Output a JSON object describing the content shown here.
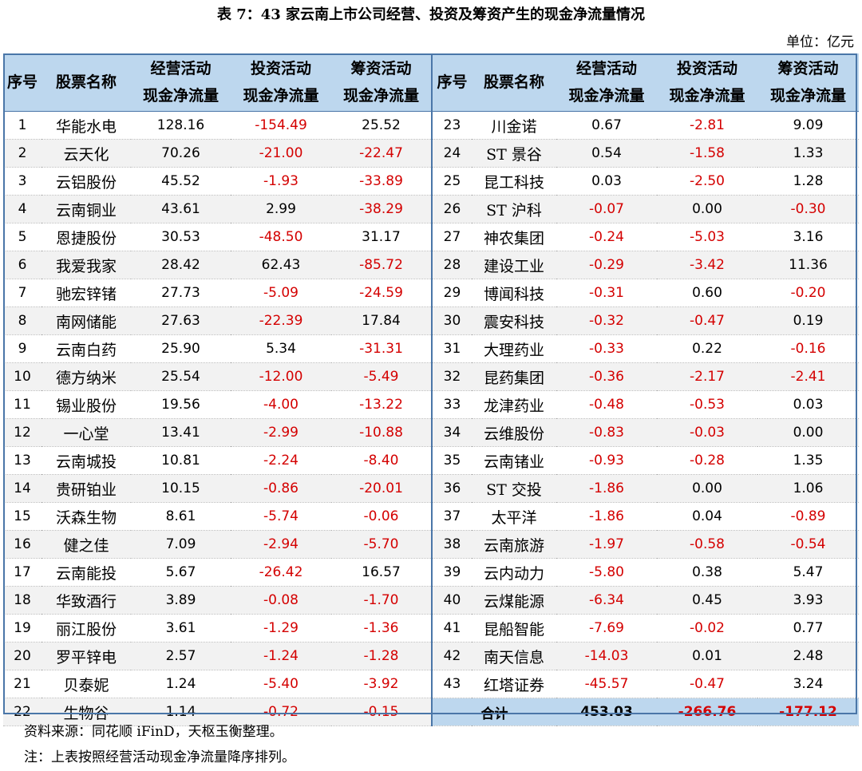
{
  "title": "表 7：43 家云南上市公司经营、投资及筹资产生的现金净流量情况",
  "unit": "单位：亿元",
  "headers": {
    "idx": "序号",
    "name": "股票名称",
    "op": [
      "经营活动",
      "现金净流量"
    ],
    "inv": [
      "投资活动",
      "现金净流量"
    ],
    "fin": [
      "筹资活动",
      "现金净流量"
    ]
  },
  "left_rows": [
    {
      "idx": "1",
      "name": "华能水电",
      "op": "128.16",
      "inv": "-154.49",
      "fin": "25.52"
    },
    {
      "idx": "2",
      "name": "云天化",
      "op": "70.26",
      "inv": "-21.00",
      "fin": "-22.47"
    },
    {
      "idx": "3",
      "name": "云铝股份",
      "op": "45.52",
      "inv": "-1.93",
      "fin": "-33.89"
    },
    {
      "idx": "4",
      "name": "云南铜业",
      "op": "43.61",
      "inv": "2.99",
      "fin": "-38.29"
    },
    {
      "idx": "5",
      "name": "恩捷股份",
      "op": "30.53",
      "inv": "-48.50",
      "fin": "31.17"
    },
    {
      "idx": "6",
      "name": "我爱我家",
      "op": "28.42",
      "inv": "62.43",
      "fin": "-85.72"
    },
    {
      "idx": "7",
      "name": "驰宏锌锗",
      "op": "27.73",
      "inv": "-5.09",
      "fin": "-24.59"
    },
    {
      "idx": "8",
      "name": "南网储能",
      "op": "27.63",
      "inv": "-22.39",
      "fin": "17.84"
    },
    {
      "idx": "9",
      "name": "云南白药",
      "op": "25.90",
      "inv": "5.34",
      "fin": "-31.31"
    },
    {
      "idx": "10",
      "name": "德方纳米",
      "op": "25.54",
      "inv": "-12.00",
      "fin": "-5.49"
    },
    {
      "idx": "11",
      "name": "锡业股份",
      "op": "19.56",
      "inv": "-4.00",
      "fin": "-13.22"
    },
    {
      "idx": "12",
      "name": "一心堂",
      "op": "13.41",
      "inv": "-2.99",
      "fin": "-10.88"
    },
    {
      "idx": "13",
      "name": "云南城投",
      "op": "10.81",
      "inv": "-2.24",
      "fin": "-8.40"
    },
    {
      "idx": "14",
      "name": "贵研铂业",
      "op": "10.15",
      "inv": "-0.86",
      "fin": "-20.01"
    },
    {
      "idx": "15",
      "name": "沃森生物",
      "op": "8.61",
      "inv": "-5.74",
      "fin": "-0.06"
    },
    {
      "idx": "16",
      "name": "健之佳",
      "op": "7.09",
      "inv": "-2.94",
      "fin": "-5.70"
    },
    {
      "idx": "17",
      "name": "云南能投",
      "op": "5.67",
      "inv": "-26.42",
      "fin": "16.57"
    },
    {
      "idx": "18",
      "name": "华致酒行",
      "op": "3.89",
      "inv": "-0.08",
      "fin": "-1.70"
    },
    {
      "idx": "19",
      "name": "丽江股份",
      "op": "3.61",
      "inv": "-1.29",
      "fin": "-1.36"
    },
    {
      "idx": "20",
      "name": "罗平锌电",
      "op": "2.57",
      "inv": "-1.24",
      "fin": "-1.28"
    },
    {
      "idx": "21",
      "name": "贝泰妮",
      "op": "1.24",
      "inv": "-5.40",
      "fin": "-3.92"
    },
    {
      "idx": "22",
      "name": "生物谷",
      "op": "1.14",
      "inv": "-0.72",
      "fin": "-0.15"
    }
  ],
  "right_rows": [
    {
      "idx": "23",
      "name": "川金诺",
      "op": "0.67",
      "inv": "-2.81",
      "fin": "9.09"
    },
    {
      "idx": "24",
      "name": "ST 景谷",
      "op": "0.54",
      "inv": "-1.58",
      "fin": "1.33"
    },
    {
      "idx": "25",
      "name": "昆工科技",
      "op": "0.03",
      "inv": "-2.50",
      "fin": "1.28"
    },
    {
      "idx": "26",
      "name": "ST 沪科",
      "op": "-0.07",
      "inv": "0.00",
      "fin": "-0.30"
    },
    {
      "idx": "27",
      "name": "神农集团",
      "op": "-0.24",
      "inv": "-5.03",
      "fin": "3.16"
    },
    {
      "idx": "28",
      "name": "建设工业",
      "op": "-0.29",
      "inv": "-3.42",
      "fin": "11.36"
    },
    {
      "idx": "29",
      "name": "博闻科技",
      "op": "-0.31",
      "inv": "0.60",
      "fin": "-0.20"
    },
    {
      "idx": "30",
      "name": "震安科技",
      "op": "-0.32",
      "inv": "-0.47",
      "fin": "0.19"
    },
    {
      "idx": "31",
      "name": "大理药业",
      "op": "-0.33",
      "inv": "0.22",
      "fin": "-0.16"
    },
    {
      "idx": "32",
      "name": "昆药集团",
      "op": "-0.36",
      "inv": "-2.17",
      "fin": "-2.41"
    },
    {
      "idx": "33",
      "name": "龙津药业",
      "op": "-0.48",
      "inv": "-0.53",
      "fin": "0.03"
    },
    {
      "idx": "34",
      "name": "云维股份",
      "op": "-0.83",
      "inv": "-0.03",
      "fin": "0.00"
    },
    {
      "idx": "35",
      "name": "云南锗业",
      "op": "-0.93",
      "inv": "-0.28",
      "fin": "1.35"
    },
    {
      "idx": "36",
      "name": "ST 交投",
      "op": "-1.86",
      "inv": "0.00",
      "fin": "1.06"
    },
    {
      "idx": "37",
      "name": "太平洋",
      "op": "-1.86",
      "inv": "0.04",
      "fin": "-0.89"
    },
    {
      "idx": "38",
      "name": "云南旅游",
      "op": "-1.97",
      "inv": "-0.58",
      "fin": "-0.54"
    },
    {
      "idx": "39",
      "name": "云内动力",
      "op": "-5.80",
      "inv": "0.38",
      "fin": "5.47"
    },
    {
      "idx": "40",
      "name": "云煤能源",
      "op": "-6.34",
      "inv": "0.45",
      "fin": "3.93"
    },
    {
      "idx": "41",
      "name": "昆船智能",
      "op": "-7.69",
      "inv": "-0.02",
      "fin": "0.77"
    },
    {
      "idx": "42",
      "name": "南天信息",
      "op": "-14.03",
      "inv": "0.01",
      "fin": "2.48"
    },
    {
      "idx": "43",
      "name": "红塔证券",
      "op": "-45.57",
      "inv": "-0.47",
      "fin": "3.24"
    }
  ],
  "total": {
    "label": "合计",
    "op": "453.03",
    "inv": "-266.76",
    "fin": "-177.12"
  },
  "source": "资料来源：同花顺 iFinD，天枢玉衡整理。",
  "note": "注：上表按照经营活动现金净流量降序排列。",
  "colors": {
    "header_bg": "#bdd7ee",
    "border": "#4a76a8",
    "negative": "#d40000"
  }
}
